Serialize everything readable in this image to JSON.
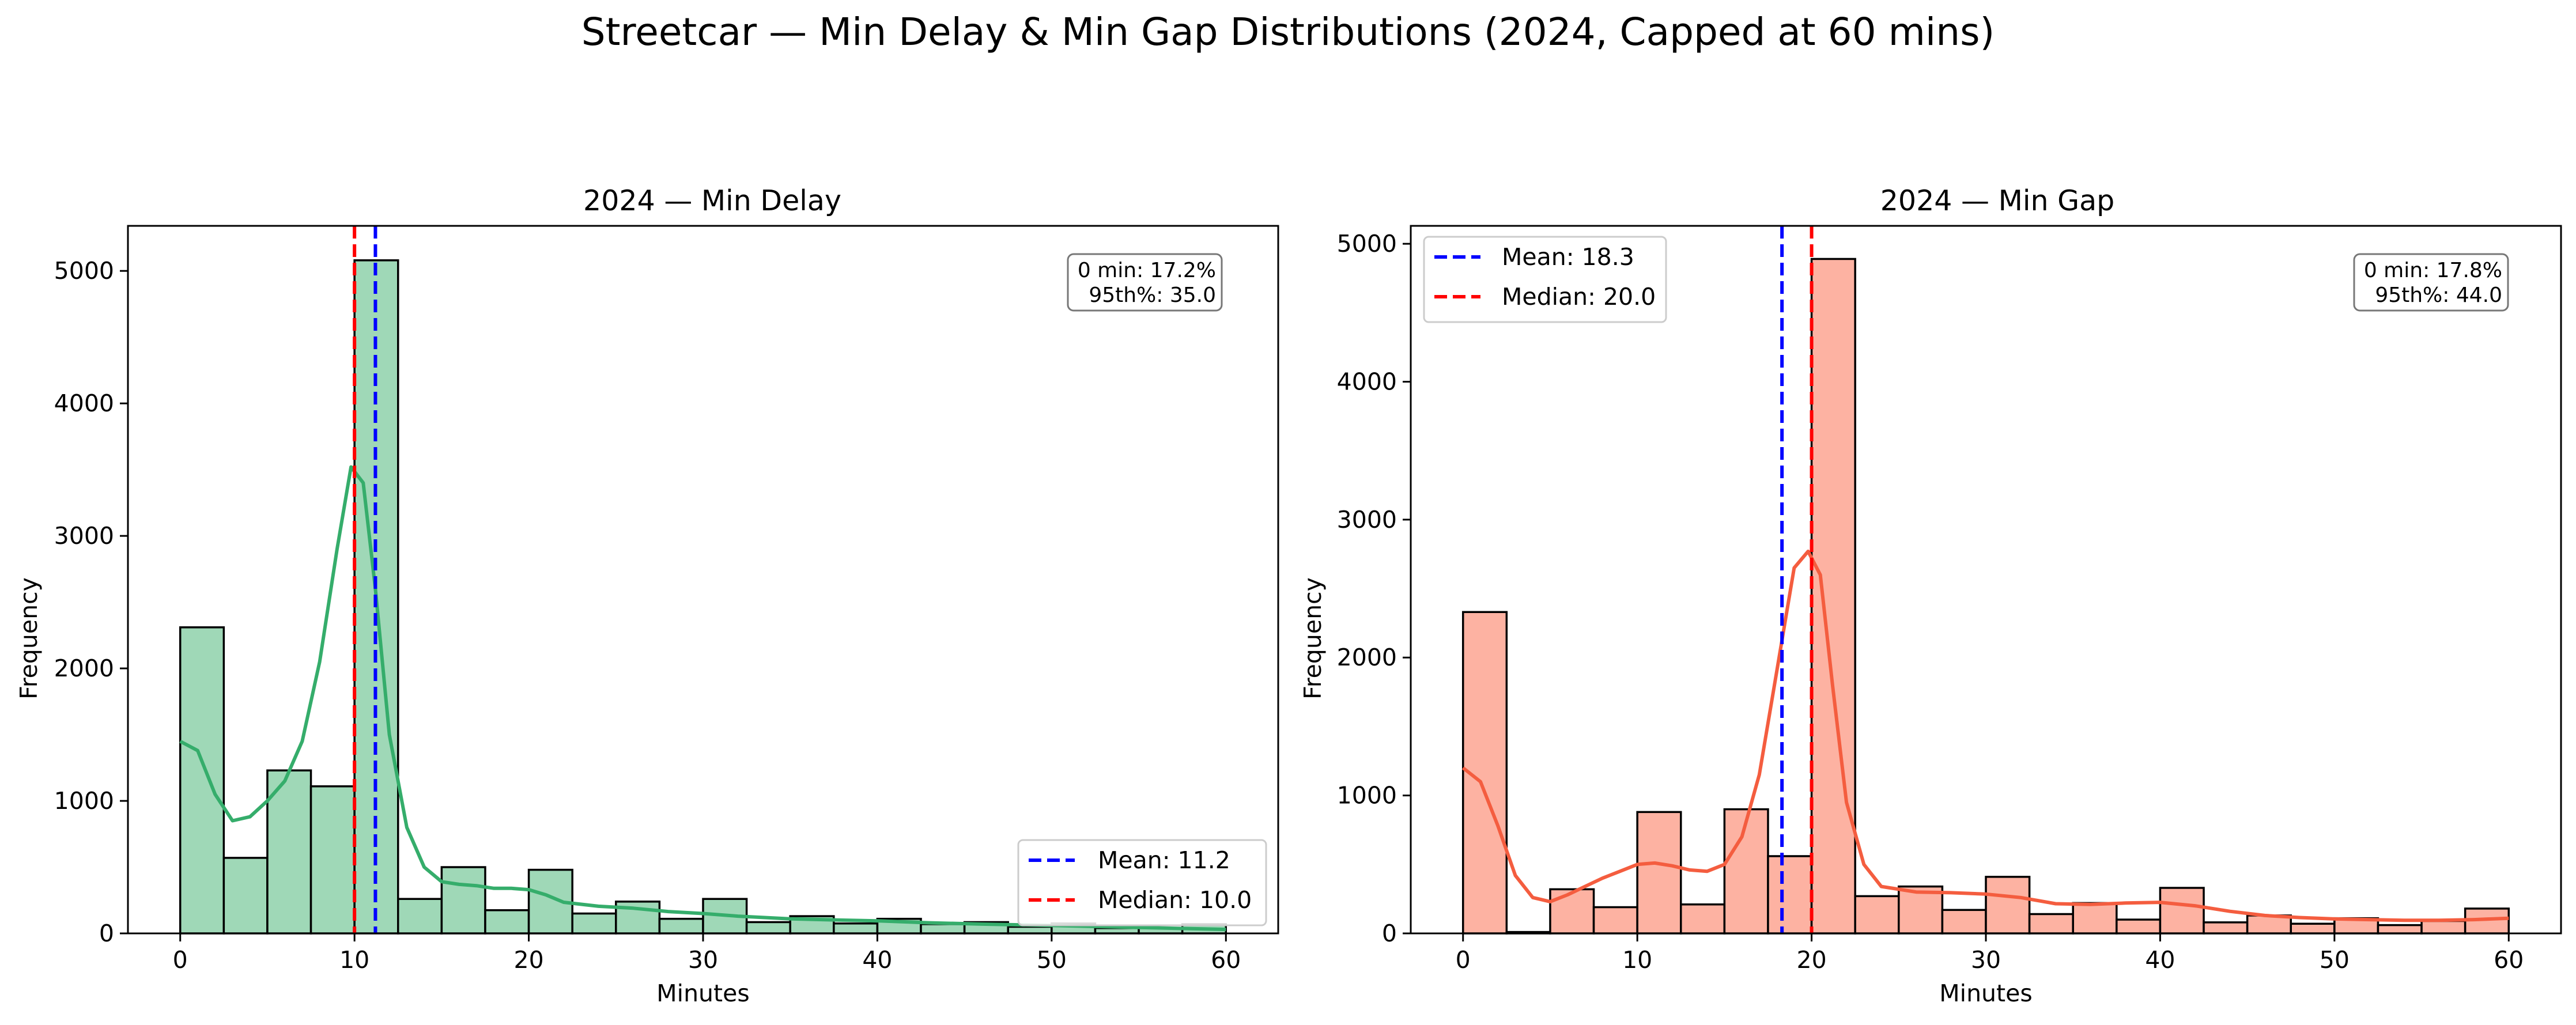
{
  "figure": {
    "title": "Streetcar — Min Delay & Min Gap Distributions (2024, Capped at 60 mins)"
  },
  "chart_data": [
    {
      "type": "bar",
      "title": "2024 — Min Delay",
      "xlabel": "Minutes",
      "ylabel": "Frequency",
      "xlim": [
        -3,
        63
      ],
      "ylim": [
        0,
        5340
      ],
      "xticks": [
        "0",
        "10",
        "20",
        "30",
        "40",
        "50",
        "60"
      ],
      "yticks": [
        "0",
        "1000",
        "2000",
        "3000",
        "4000",
        "5000"
      ],
      "bin_width": 2.5,
      "bin_start": 0,
      "values": [
        2310,
        570,
        1230,
        1110,
        5080,
        260,
        500,
        175,
        480,
        150,
        240,
        110,
        260,
        85,
        130,
        75,
        110,
        70,
        85,
        50,
        75,
        40,
        40,
        70
      ],
      "bar_color": "#9fd8b7",
      "kde_color": "#35ad6b",
      "kde": [
        [
          0,
          1450
        ],
        [
          1,
          1380
        ],
        [
          2,
          1050
        ],
        [
          3,
          850
        ],
        [
          4,
          880
        ],
        [
          5,
          1000
        ],
        [
          6,
          1150
        ],
        [
          7,
          1450
        ],
        [
          8,
          2050
        ],
        [
          9,
          2900
        ],
        [
          9.8,
          3520
        ],
        [
          10.5,
          3400
        ],
        [
          11.2,
          2600
        ],
        [
          12,
          1500
        ],
        [
          13,
          800
        ],
        [
          14,
          500
        ],
        [
          15,
          390
        ],
        [
          16,
          370
        ],
        [
          17,
          360
        ],
        [
          18,
          340
        ],
        [
          19,
          340
        ],
        [
          20,
          330
        ],
        [
          21,
          290
        ],
        [
          22,
          235
        ],
        [
          24,
          205
        ],
        [
          26,
          190
        ],
        [
          28,
          165
        ],
        [
          30,
          150
        ],
        [
          32,
          130
        ],
        [
          35,
          110
        ],
        [
          38,
          100
        ],
        [
          40,
          95
        ],
        [
          43,
          80
        ],
        [
          46,
          70
        ],
        [
          50,
          60
        ],
        [
          55,
          45
        ],
        [
          60,
          30
        ]
      ],
      "mean": {
        "label": "Mean: 11.2",
        "value": 11.2,
        "color": "#0000ff"
      },
      "median": {
        "label": "Median: 10.0",
        "value": 10.0,
        "color": "#ff0000"
      },
      "legend_location": "lower right",
      "stats_box": [
        "0 min: 17.2%",
        "95th%: 35.0"
      ]
    },
    {
      "type": "bar",
      "title": "2024 — Min Gap",
      "xlabel": "Minutes",
      "ylabel": "Frequency",
      "xlim": [
        -3,
        63
      ],
      "ylim": [
        0,
        5130
      ],
      "xticks": [
        "0",
        "10",
        "20",
        "30",
        "40",
        "50",
        "60"
      ],
      "yticks": [
        "0",
        "1000",
        "2000",
        "3000",
        "4000",
        "5000"
      ],
      "bin_width": 2.5,
      "bin_start": 0,
      "values": [
        2330,
        10,
        320,
        190,
        880,
        210,
        900,
        560,
        4890,
        270,
        340,
        170,
        410,
        140,
        220,
        100,
        330,
        80,
        130,
        70,
        110,
        60,
        90,
        180
      ],
      "bar_color": "#fdb2a2",
      "kde_color": "#f45d3f",
      "kde": [
        [
          0,
          1200
        ],
        [
          1,
          1100
        ],
        [
          2,
          780
        ],
        [
          3,
          420
        ],
        [
          4,
          260
        ],
        [
          5,
          230
        ],
        [
          6,
          280
        ],
        [
          7,
          340
        ],
        [
          8,
          400
        ],
        [
          9,
          450
        ],
        [
          10,
          500
        ],
        [
          11,
          510
        ],
        [
          12,
          490
        ],
        [
          13,
          460
        ],
        [
          14,
          450
        ],
        [
          15,
          500
        ],
        [
          16,
          700
        ],
        [
          17,
          1150
        ],
        [
          18,
          1900
        ],
        [
          19,
          2650
        ],
        [
          19.8,
          2770
        ],
        [
          20.5,
          2600
        ],
        [
          21.2,
          1800
        ],
        [
          22,
          950
        ],
        [
          23,
          500
        ],
        [
          24,
          340
        ],
        [
          26,
          300
        ],
        [
          28,
          295
        ],
        [
          30,
          285
        ],
        [
          32,
          260
        ],
        [
          34,
          215
        ],
        [
          36,
          210
        ],
        [
          38,
          220
        ],
        [
          40,
          225
        ],
        [
          42,
          200
        ],
        [
          44,
          160
        ],
        [
          46,
          130
        ],
        [
          48,
          115
        ],
        [
          50,
          105
        ],
        [
          52,
          100
        ],
        [
          54,
          95
        ],
        [
          56,
          95
        ],
        [
          58,
          100
        ],
        [
          60,
          110
        ]
      ],
      "mean": {
        "label": "Mean: 18.3",
        "value": 18.3,
        "color": "#0000ff"
      },
      "median": {
        "label": "Median: 20.0",
        "value": 20.0,
        "color": "#ff0000"
      },
      "legend_location": "upper left",
      "stats_box": [
        "0 min: 17.8%",
        "95th%: 44.0"
      ]
    }
  ]
}
